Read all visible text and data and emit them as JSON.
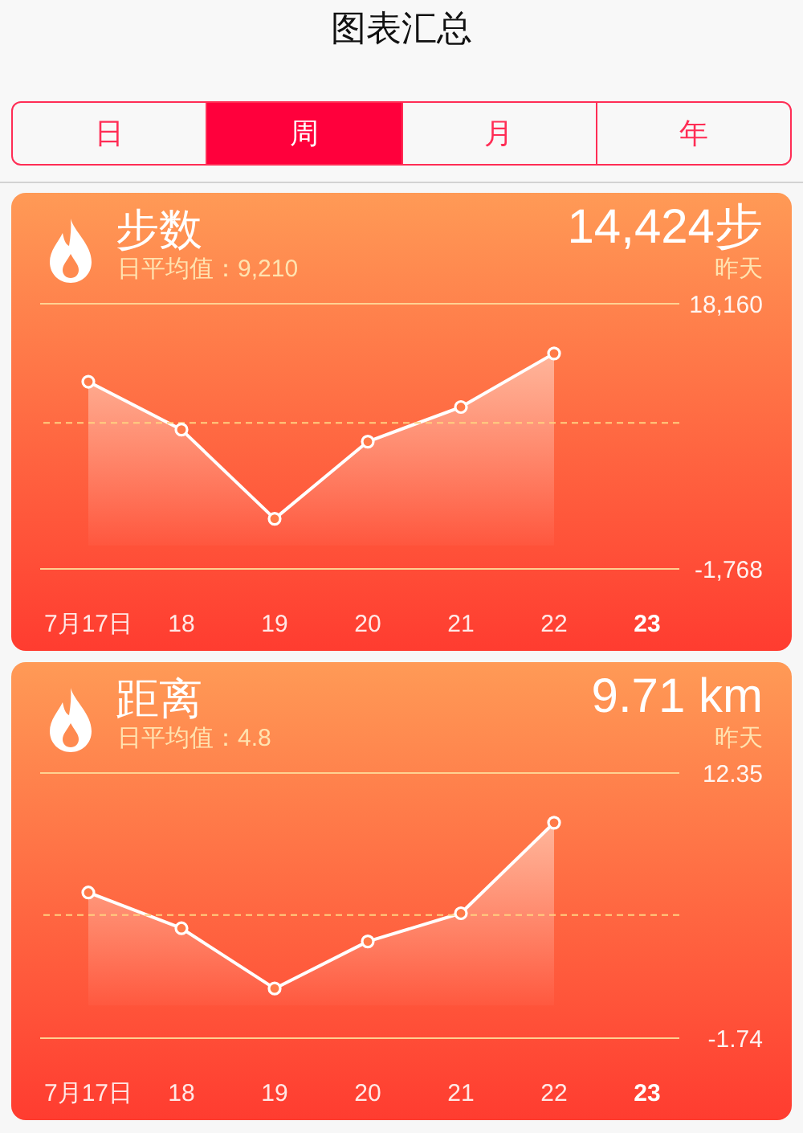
{
  "chart_data": [
    {
      "type": "other",
      "title": "图表汇总",
      "annotations": [
        "日",
        "周",
        "月",
        "年"
      ]
    },
    {
      "type": "area",
      "title": "步数",
      "subtitle": "日平均值：9,210",
      "annotations": [
        "14,424步",
        "昨天"
      ],
      "categories": [
        "7月17日",
        "18",
        "19",
        "20",
        "21",
        "22",
        "23"
      ],
      "values": [
        12300,
        8700,
        2000,
        7800,
        10400,
        14424,
        null
      ],
      "color": "#ffffff",
      "marker": "circle",
      "ylim": [
        -1768,
        18160
      ],
      "yticks": [
        {
          "value": -1768,
          "label": "-1,768"
        },
        {
          "value": 18160,
          "label": "18,160"
        }
      ],
      "ref_lines": [
        {
          "axis": "y",
          "value": 9210,
          "color": "#ffd080",
          "line_style": "dashed"
        }
      ]
    },
    {
      "type": "area",
      "title": "距离",
      "subtitle": "日平均值：4.8",
      "annotations": [
        "9.71 km",
        "昨天"
      ],
      "categories": [
        "7月17日",
        "18",
        "19",
        "20",
        "21",
        "22",
        "23"
      ],
      "values": [
        6.0,
        4.1,
        0.9,
        3.4,
        4.9,
        9.71,
        null
      ],
      "color": "#ffffff",
      "marker": "circle",
      "ylim": [
        -1.74,
        12.35
      ],
      "yticks": [
        -1.74,
        12.35
      ],
      "ref_lines": [
        {
          "axis": "y",
          "value": 4.8,
          "color": "#ffd080",
          "line_style": "dashed"
        }
      ]
    }
  ]
}
